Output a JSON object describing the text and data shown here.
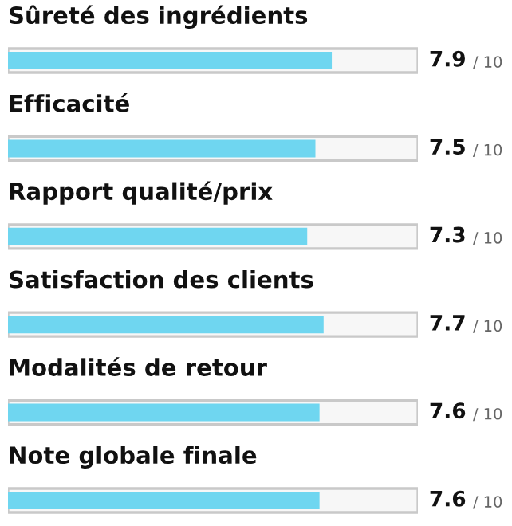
{
  "chart_data": {
    "type": "bar",
    "orientation": "horizontal",
    "categories": [
      "Sûreté des ingrédients",
      "Efficacité",
      "Rapport qualité/prix",
      "Satisfaction des clients",
      "Modalités de retour",
      "Note globale finale"
    ],
    "values": [
      7.9,
      7.5,
      7.3,
      7.7,
      7.6,
      7.6
    ],
    "data_labels": true,
    "annotations": [
      "/ 10",
      "/ 10",
      "/ 10",
      "/ 10",
      "/ 10",
      "/ 10"
    ],
    "color": "#6fd6f0",
    "xlim": [
      0,
      10
    ]
  }
}
